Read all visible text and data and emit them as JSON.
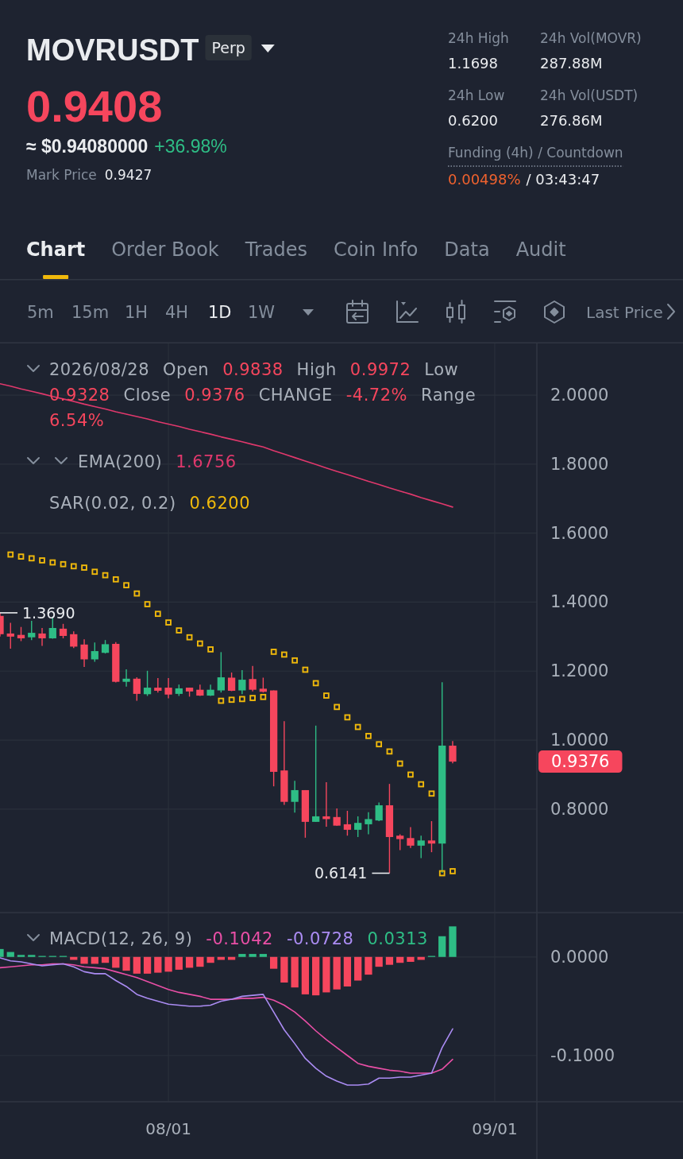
{
  "chart_data": [
    {
      "type": "other",
      "title": "MOVRUSDT",
      "annotations": [
        "Perp",
        "0.9408",
        "≈ $0.94080000",
        "+36.98%",
        "Mark Price",
        "0.9427",
        "24h High",
        "1.1698",
        "24h Vol(MOVR)",
        "287.88M",
        "24h Low",
        "0.6200",
        "24h Vol(USDT)",
        "276.86M",
        "Funding (4h) / Countdown",
        "0.00498%",
        "/ 03:43:47",
        "Chart",
        "Order Book",
        "Trades",
        "Coin Info",
        "Data",
        "Audit",
        "5m",
        "15m",
        "1H",
        "4H",
        "1D",
        "1W",
        "Last Price"
      ]
    },
    {
      "type": "candlestick",
      "x": [
        "2026-07-16",
        "2026-07-17",
        "2026-07-18",
        "2026-07-19",
        "2026-07-20",
        "2026-07-21",
        "2026-07-22",
        "2026-07-23",
        "2026-07-24",
        "2026-07-25",
        "2026-07-26",
        "2026-07-27",
        "2026-07-28",
        "2026-07-29",
        "2026-07-30",
        "2026-07-31",
        "2026-08-01",
        "2026-08-02",
        "2026-08-03",
        "2026-08-04",
        "2026-08-05",
        "2026-08-06",
        "2026-08-07",
        "2026-08-08",
        "2026-08-09",
        "2026-08-10",
        "2026-08-11",
        "2026-08-12",
        "2026-08-13",
        "2026-08-14",
        "2026-08-15",
        "2026-08-16",
        "2026-08-17",
        "2026-08-18",
        "2026-08-19",
        "2026-08-20",
        "2026-08-21",
        "2026-08-22",
        "2026-08-23",
        "2026-08-24",
        "2026-08-25",
        "2026-08-26",
        "2026-08-27",
        "2026-08-28"
      ],
      "ohlc": [
        [
          1.36,
          1.369,
          1.3,
          1.307
        ],
        [
          1.309,
          1.34,
          1.265,
          1.3
        ],
        [
          1.305,
          1.328,
          1.287,
          1.295
        ],
        [
          1.298,
          1.346,
          1.29,
          1.311
        ],
        [
          1.309,
          1.325,
          1.273,
          1.295
        ],
        [
          1.295,
          1.358,
          1.294,
          1.325
        ],
        [
          1.323,
          1.337,
          1.295,
          1.302
        ],
        [
          1.307,
          1.315,
          1.267,
          1.271
        ],
        [
          1.277,
          1.292,
          1.212,
          1.234
        ],
        [
          1.234,
          1.283,
          1.227,
          1.258
        ],
        [
          1.253,
          1.29,
          1.251,
          1.278
        ],
        [
          1.279,
          1.284,
          1.167,
          1.169
        ],
        [
          1.169,
          1.205,
          1.155,
          1.178
        ],
        [
          1.178,
          1.182,
          1.114,
          1.134
        ],
        [
          1.133,
          1.201,
          1.128,
          1.152
        ],
        [
          1.152,
          1.18,
          1.138,
          1.143
        ],
        [
          1.152,
          1.18,
          1.121,
          1.132
        ],
        [
          1.134,
          1.161,
          1.128,
          1.15
        ],
        [
          1.152,
          1.152,
          1.126,
          1.141
        ],
        [
          1.146,
          1.161,
          1.128,
          1.129
        ],
        [
          1.129,
          1.161,
          1.128,
          1.146
        ],
        [
          1.144,
          1.255,
          1.138,
          1.182
        ],
        [
          1.181,
          1.196,
          1.142,
          1.143
        ],
        [
          1.144,
          1.203,
          1.133,
          1.175
        ],
        [
          1.177,
          1.215,
          1.141,
          1.146
        ],
        [
          1.149,
          1.181,
          1.138,
          1.14
        ],
        [
          1.144,
          1.144,
          0.866,
          0.908
        ],
        [
          0.912,
          1.055,
          0.812,
          0.821
        ],
        [
          0.821,
          0.882,
          0.79,
          0.855
        ],
        [
          0.855,
          0.855,
          0.717,
          0.763
        ],
        [
          0.763,
          1.042,
          0.763,
          0.779
        ],
        [
          0.779,
          0.878,
          0.749,
          0.771
        ],
        [
          0.777,
          0.802,
          0.752,
          0.752
        ],
        [
          0.756,
          0.795,
          0.723,
          0.74
        ],
        [
          0.74,
          0.779,
          0.719,
          0.76
        ],
        [
          0.756,
          0.791,
          0.727,
          0.771
        ],
        [
          0.767,
          0.819,
          0.765,
          0.811
        ],
        [
          0.811,
          0.873,
          0.6141,
          0.719
        ],
        [
          0.723,
          0.727,
          0.681,
          0.713
        ],
        [
          0.716,
          0.748,
          0.687,
          0.694
        ],
        [
          0.694,
          0.723,
          0.658,
          0.709
        ],
        [
          0.709,
          0.765,
          0.675,
          0.7
        ],
        [
          0.7,
          1.168,
          0.615,
          0.984
        ],
        [
          0.9838,
          0.9972,
          0.9328,
          0.9376
        ]
      ],
      "colors": [
        "#f6465d",
        "#f6465d",
        "#f6465d",
        "#2ebd85",
        "#f6465d",
        "#2ebd85",
        "#f6465d",
        "#f6465d",
        "#f6465d",
        "#2ebd85",
        "#2ebd85",
        "#f6465d",
        "#2ebd85",
        "#f6465d",
        "#2ebd85",
        "#f6465d",
        "#f6465d",
        "#2ebd85",
        "#f6465d",
        "#f6465d",
        "#2ebd85",
        "#2ebd85",
        "#f6465d",
        "#2ebd85",
        "#f6465d",
        "#f6465d",
        "#f6465d",
        "#f6465d",
        "#2ebd85",
        "#f6465d",
        "#2ebd85",
        "#f6465d",
        "#f6465d",
        "#f6465d",
        "#2ebd85",
        "#2ebd85",
        "#2ebd85",
        "#f6465d",
        "#f6465d",
        "#f6465d",
        "#2ebd85",
        "#f6465d",
        "#2ebd85",
        "#f6465d"
      ],
      "series": [
        {
          "name": "EMA(200)",
          "type": "line",
          "color": "#e0386c",
          "values": [
            2.033,
            2.026,
            2.018,
            2.011,
            2.004,
            1.996,
            1.989,
            1.982,
            1.974,
            1.967,
            1.96,
            1.952,
            1.945,
            1.938,
            1.931,
            1.923,
            1.916,
            1.909,
            1.901,
            1.894,
            1.887,
            1.879,
            1.872,
            1.865,
            1.857,
            1.85,
            1.839,
            1.829,
            1.819,
            1.809,
            1.799,
            1.789,
            1.779,
            1.77,
            1.76,
            1.75,
            1.741,
            1.731,
            1.722,
            1.713,
            1.703,
            1.694,
            1.685,
            1.6756
          ]
        },
        {
          "name": "SAR(0.02, 0.2)",
          "type": "scatter",
          "marker": "square",
          "color": "#f0b90b",
          "values": [
            null,
            1.538,
            1.532,
            1.527,
            1.521,
            1.515,
            1.51,
            1.504,
            1.5,
            1.488,
            1.478,
            1.466,
            1.449,
            1.425,
            1.394,
            1.366,
            1.341,
            1.318,
            1.298,
            1.28,
            1.263,
            1.114,
            1.117,
            1.119,
            1.122,
            1.125,
            1.256,
            1.248,
            1.231,
            1.204,
            1.165,
            1.129,
            1.096,
            1.066,
            1.038,
            1.012,
            0.988,
            0.967,
            0.932,
            0.9,
            0.872,
            0.845,
            0.614,
            0.62
          ]
        }
      ],
      "xlim": [
        "2026-07-16",
        "2026-09-05"
      ],
      "ylim": [
        0.5,
        2.15
      ],
      "xticks": [
        {
          "value": "2026-08-01",
          "label": null
        },
        {
          "value": "2026-09-01",
          "label": null
        }
      ],
      "yticks": [
        {
          "value": 0.8,
          "label": "0.8000"
        },
        {
          "value": 1,
          "label": "1.0000"
        },
        {
          "value": 1.2,
          "label": "1.2000"
        },
        {
          "value": 1.4,
          "label": "1.4000"
        },
        {
          "value": 1.6,
          "label": "1.6000"
        },
        {
          "value": 1.8,
          "label": "1.8000"
        },
        {
          "value": 2,
          "label": "2.0000"
        }
      ],
      "grid": true,
      "tick_labels": "y",
      "legend": "top left",
      "annotations": [
        "2026/08/28",
        "Open",
        "0.9838",
        "High",
        "0.9972",
        "Low",
        "0.9328",
        "Close",
        "0.9376",
        "CHANGE",
        "-4.72%",
        "Range",
        "6.54%",
        "1.6756",
        "0.6200",
        "0.9376",
        {
          "text": "1.3690",
          "x": "2026-07-16",
          "y": 1.369
        },
        {
          "text": "0.6141",
          "x": "2026-08-22",
          "y": 0.6141
        }
      ]
    },
    {
      "type": "bar",
      "title": "MACD(12, 26, 9)",
      "x": [
        "2026-07-16",
        "2026-07-17",
        "2026-07-18",
        "2026-07-19",
        "2026-07-20",
        "2026-07-21",
        "2026-07-22",
        "2026-07-23",
        "2026-07-24",
        "2026-07-25",
        "2026-07-26",
        "2026-07-27",
        "2026-07-28",
        "2026-07-29",
        "2026-07-30",
        "2026-07-31",
        "2026-08-01",
        "2026-08-02",
        "2026-08-03",
        "2026-08-04",
        "2026-08-05",
        "2026-08-06",
        "2026-08-07",
        "2026-08-08",
        "2026-08-09",
        "2026-08-10",
        "2026-08-11",
        "2026-08-12",
        "2026-08-13",
        "2026-08-14",
        "2026-08-15",
        "2026-08-16",
        "2026-08-17",
        "2026-08-18",
        "2026-08-19",
        "2026-08-20",
        "2026-08-21",
        "2026-08-22",
        "2026-08-23",
        "2026-08-24",
        "2026-08-25",
        "2026-08-26",
        "2026-08-27",
        "2026-08-28"
      ],
      "series": [
        {
          "type": "line",
          "color": "#e94fa6",
          "values": [
            -0.011,
            -0.01,
            -0.009,
            -0.008,
            -0.008,
            -0.007,
            -0.007,
            -0.008,
            -0.01,
            -0.011,
            -0.012,
            -0.015,
            -0.018,
            -0.021,
            -0.025,
            -0.029,
            -0.033,
            -0.036,
            -0.038,
            -0.04,
            -0.043,
            -0.043,
            -0.043,
            -0.042,
            -0.042,
            -0.041,
            -0.044,
            -0.049,
            -0.056,
            -0.065,
            -0.075,
            -0.084,
            -0.092,
            -0.1,
            -0.108,
            -0.111,
            -0.113,
            -0.115,
            -0.116,
            -0.118,
            -0.118,
            -0.118,
            -0.114,
            -0.104
          ]
        },
        {
          "type": "line",
          "color": "#ab8cf3",
          "values": [
            -0.001,
            -0.004,
            -0.005,
            -0.007,
            -0.009,
            -0.008,
            -0.007,
            -0.01,
            -0.015,
            -0.017,
            -0.017,
            -0.024,
            -0.03,
            -0.038,
            -0.042,
            -0.045,
            -0.048,
            -0.049,
            -0.05,
            -0.05,
            -0.049,
            -0.045,
            -0.043,
            -0.04,
            -0.039,
            -0.038,
            -0.056,
            -0.074,
            -0.088,
            -0.103,
            -0.113,
            -0.121,
            -0.126,
            -0.13,
            -0.13,
            -0.129,
            -0.123,
            -0.123,
            -0.122,
            -0.122,
            -0.12,
            -0.118,
            -0.092,
            -0.073
          ]
        },
        {
          "type": "bar",
          "colors": [
            "#2ebd85",
            "#2ebd85",
            "#2ebd85",
            "#2ebd85",
            "#2ebd85",
            "#2ebd85",
            "#2ebd85",
            "#f6465d",
            "#f6465d",
            "#f6465d",
            "#f6465d",
            "#f6465d",
            "#f6465d",
            "#f6465d",
            "#f6465d",
            "#f6465d",
            "#f6465d",
            "#f6465d",
            "#f6465d",
            "#f6465d",
            "#f6465d",
            "#f6465d",
            "#f6465d",
            "#2ebd85",
            "#2ebd85",
            "#2ebd85",
            "#f6465d",
            "#f6465d",
            "#f6465d",
            "#f6465d",
            "#f6465d",
            "#f6465d",
            "#f6465d",
            "#f6465d",
            "#f6465d",
            "#f6465d",
            "#f6465d",
            "#f6465d",
            "#f6465d",
            "#f6465d",
            "#f6465d",
            "#2ebd85",
            "#2ebd85",
            "#2ebd85"
          ],
          "values": [
            0.008,
            0.005,
            0.002,
            0.002,
            0.001,
            0.001,
            0.001,
            -0.003,
            -0.007,
            -0.007,
            -0.006,
            -0.011,
            -0.014,
            -0.017,
            -0.017,
            -0.016,
            -0.015,
            -0.013,
            -0.011,
            -0.01,
            -0.006,
            -0.003,
            -0.003,
            0.003,
            0.003,
            0.003,
            -0.012,
            -0.026,
            -0.031,
            -0.038,
            -0.039,
            -0.036,
            -0.033,
            -0.03,
            -0.024,
            -0.018,
            -0.01,
            -0.008,
            -0.006,
            -0.005,
            -0.003,
            0.001,
            0.021,
            0.031
          ]
        }
      ],
      "xlim": [
        "2026-07-16",
        "2026-09-05"
      ],
      "ylim": [
        -0.147,
        0.045
      ],
      "xticks": [
        {
          "value": "2026-08-01",
          "label": "08/01"
        },
        {
          "value": "2026-09-01",
          "label": "09/01"
        }
      ],
      "yticks": [
        {
          "value": -0.1,
          "label": "-0.1000"
        },
        {
          "value": 0,
          "label": "0.0000"
        }
      ],
      "grid": true,
      "annotations": [
        "-0.1042",
        "-0.0728",
        "0.0313"
      ]
    }
  ]
}
